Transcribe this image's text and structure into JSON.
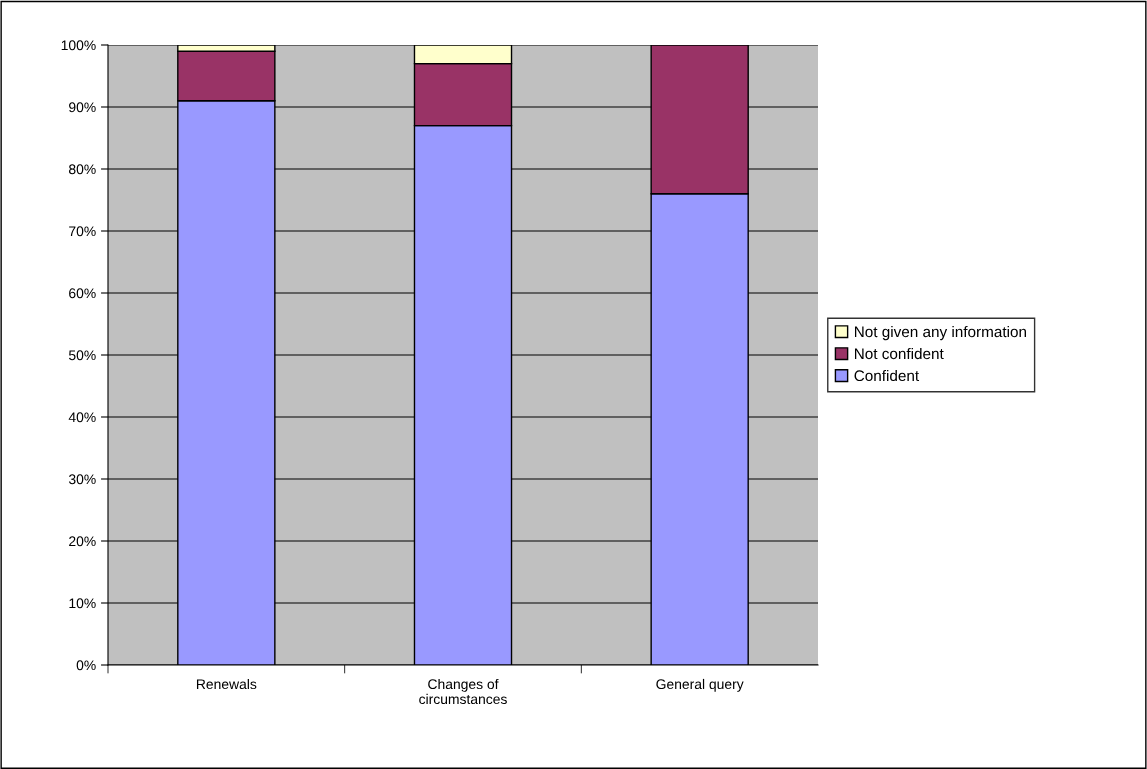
{
  "chart_data": {
    "type": "bar",
    "stacked": true,
    "categories": [
      "Renewals",
      "Changes of\ncircumstances",
      "General query"
    ],
    "series": [
      {
        "name": "Confident",
        "color": "#9999ff",
        "values": [
          91,
          87,
          76
        ]
      },
      {
        "name": "Not confident",
        "color": "#993366",
        "values": [
          8,
          10,
          24
        ]
      },
      {
        "name": "Not given any information",
        "color": "#ffffcc",
        "values": [
          1,
          3,
          null
        ]
      }
    ],
    "ylim": [
      0,
      100
    ],
    "yticks": [
      {
        "value": 0,
        "label": "0%"
      },
      {
        "value": 10,
        "label": "10%"
      },
      {
        "value": 20,
        "label": "20%"
      },
      {
        "value": 30,
        "label": "30%"
      },
      {
        "value": 40,
        "label": "40%"
      },
      {
        "value": 50,
        "label": "50%"
      },
      {
        "value": 60,
        "label": "60%"
      },
      {
        "value": 70,
        "label": "70%"
      },
      {
        "value": 80,
        "label": "80%"
      },
      {
        "value": 90,
        "label": "90%"
      },
      {
        "value": 100,
        "label": "100%"
      }
    ],
    "grid": "y",
    "legend": "right"
  }
}
